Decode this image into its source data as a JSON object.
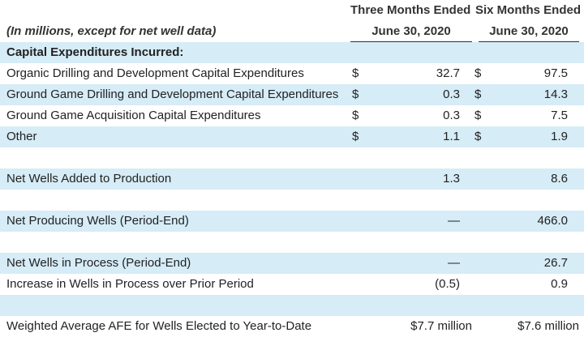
{
  "header": {
    "col1_title": "Three Months Ended",
    "col2_title": "Six Months Ended",
    "unit_note": "(In millions, except for net well data)",
    "col1_date": "June 30, 2020",
    "col2_date": "June 30, 2020"
  },
  "rows": [
    {
      "label": "Capital Expenditures Incurred:",
      "cur1": "",
      "val1": "",
      "cur2": "",
      "val2": ""
    },
    {
      "label": "Organic Drilling and Development Capital Expenditures",
      "cur1": "$",
      "val1": "32.7",
      "cur2": "$",
      "val2": "97.5"
    },
    {
      "label": "Ground Game Drilling and Development Capital Expenditures",
      "cur1": "$",
      "val1": "0.3",
      "cur2": "$",
      "val2": "14.3"
    },
    {
      "label": "Ground Game Acquisition Capital Expenditures",
      "cur1": "$",
      "val1": "0.3",
      "cur2": "$",
      "val2": "7.5"
    },
    {
      "label": "Other",
      "cur1": "$",
      "val1": "1.1",
      "cur2": "$",
      "val2": "1.9"
    },
    {
      "label": "",
      "cur1": "",
      "val1": "",
      "cur2": "",
      "val2": ""
    },
    {
      "label": "Net Wells Added to Production",
      "cur1": "",
      "val1": "1.3",
      "cur2": "",
      "val2": "8.6"
    },
    {
      "label": "",
      "cur1": "",
      "val1": "",
      "cur2": "",
      "val2": ""
    },
    {
      "label": "Net Producing Wells (Period-End)",
      "cur1": "",
      "val1": "—",
      "cur2": "",
      "val2": "466.0"
    },
    {
      "label": "",
      "cur1": "",
      "val1": "",
      "cur2": "",
      "val2": ""
    },
    {
      "label": "Net Wells in Process (Period-End)",
      "cur1": "",
      "val1": "—",
      "cur2": "",
      "val2": "26.7"
    },
    {
      "label": "Increase in Wells in Process over Prior Period",
      "cur1": "",
      "val1": "(0.5)",
      "cur2": "",
      "val2": "0.9"
    },
    {
      "label": "",
      "cur1": "",
      "val1": "",
      "cur2": "",
      "val2": ""
    },
    {
      "label": "Weighted Average AFE for Wells Elected to Year-to-Date",
      "cur1": "",
      "val1": "$7.7 million",
      "cur2": "",
      "val2": "$7.6 million"
    }
  ]
}
